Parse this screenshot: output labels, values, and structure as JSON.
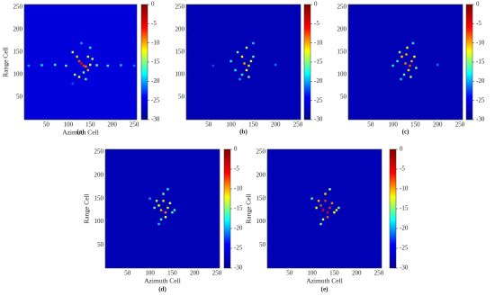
{
  "chart_data": [
    {
      "type": "heatmap",
      "label": "(a)",
      "xlabel": "Azimuth Cell",
      "ylabel": "Range Cell",
      "xlim": [
        0,
        256
      ],
      "ylim": [
        0,
        256
      ],
      "xticks": [
        50,
        100,
        150,
        200,
        250
      ],
      "yticks": [
        50,
        100,
        150,
        200,
        250
      ],
      "zlim": [
        -30,
        0
      ],
      "zticks": [
        0,
        -5,
        -10,
        -15,
        -20,
        -25,
        -30
      ],
      "colorscale": [
        "#00008f",
        "#0000ff",
        "#00ffff",
        "#ffff00",
        "#ff0000",
        "#800000"
      ],
      "background": -26,
      "points": {
        "x": [
          10,
          40,
          70,
          95,
          110,
          120,
          125,
          130,
          135,
          140,
          145,
          150,
          155,
          165,
          190,
          220,
          250,
          115,
          125,
          135,
          140,
          150,
          130,
          110,
          145
        ],
        "y": [
          120,
          121,
          122,
          120,
          150,
          140,
          130,
          125,
          120,
          118,
          110,
          122,
          135,
          121,
          120,
          121,
          120,
          100,
          95,
          105,
          90,
          160,
          170,
          80,
          140
        ],
        "values": [
          -20,
          -18,
          -17,
          -16,
          -13,
          -11,
          -8,
          -6,
          -7,
          -9,
          -10,
          -12,
          -14,
          -15,
          -17,
          -19,
          -21,
          -14,
          -12,
          -15,
          -16,
          -18,
          -20,
          -22,
          -13
        ]
      }
    },
    {
      "type": "heatmap",
      "label": "(b)",
      "xlim": [
        0,
        256
      ],
      "ylim": [
        0,
        256
      ],
      "xticks": [
        50,
        100,
        150,
        200,
        250
      ],
      "yticks": [
        50,
        100,
        150,
        200,
        250
      ],
      "zlim": [
        -30,
        0
      ],
      "zticks": [
        0,
        -5,
        -10,
        -15,
        -20,
        -25,
        -30
      ],
      "colorscale": [
        "#00008f",
        "#0000ff",
        "#00ffff",
        "#ffff00",
        "#ff0000",
        "#800000"
      ],
      "background": -28,
      "points": {
        "x": [
          60,
          100,
          115,
          125,
          130,
          135,
          140,
          145,
          150,
          125,
          135,
          120,
          150,
          200,
          140,
          110
        ],
        "y": [
          120,
          130,
          150,
          140,
          125,
          160,
          120,
          130,
          140,
          100,
          110,
          90,
          170,
          122,
          95,
          110
        ],
        "values": [
          -22,
          -18,
          -15,
          -12,
          -10,
          -14,
          -11,
          -13,
          -16,
          -17,
          -12,
          -20,
          -19,
          -21,
          -15,
          -18
        ]
      }
    },
    {
      "type": "heatmap",
      "label": "(c)",
      "xlim": [
        0,
        256
      ],
      "ylim": [
        0,
        256
      ],
      "xticks": [
        50,
        100,
        150,
        200,
        250
      ],
      "yticks": [
        50,
        100,
        150,
        200,
        250
      ],
      "zlim": [
        -30,
        0
      ],
      "zticks": [
        0,
        -5,
        -10,
        -15,
        -20,
        -25,
        -30
      ],
      "colorscale": [
        "#00008f",
        "#0000ff",
        "#00ffff",
        "#ffff00",
        "#ff0000",
        "#800000"
      ],
      "background": -28,
      "points": {
        "x": [
          100,
          115,
          120,
          128,
          132,
          138,
          142,
          148,
          152,
          125,
          135,
          118,
          145,
          200,
          140,
          110,
          130
        ],
        "y": [
          120,
          150,
          140,
          125,
          160,
          120,
          130,
          140,
          115,
          100,
          110,
          90,
          170,
          122,
          95,
          130,
          145
        ],
        "values": [
          -18,
          -14,
          -11,
          -9,
          -13,
          -8,
          -10,
          -12,
          -15,
          -16,
          -11,
          -19,
          -18,
          -21,
          -14,
          -17,
          -10
        ]
      }
    },
    {
      "type": "heatmap",
      "label": "(d)",
      "xlabel": "Azimuth Cell",
      "ylabel": "Range Cell",
      "xlim": [
        0,
        256
      ],
      "ylim": [
        0,
        256
      ],
      "xticks": [
        50,
        100,
        150,
        200,
        250
      ],
      "yticks": [
        50,
        100,
        150,
        200,
        250
      ],
      "zlim": [
        -30,
        0
      ],
      "zticks": [
        0,
        -5,
        -10,
        -15,
        -20,
        -25,
        -30
      ],
      "colorscale": [
        "#00008f",
        "#0000ff",
        "#00ffff",
        "#ffff00",
        "#ff0000",
        "#800000"
      ],
      "background": -28,
      "points": {
        "x": [
          100,
          115,
          120,
          125,
          130,
          135,
          140,
          145,
          150,
          125,
          135,
          120,
          140,
          110,
          130,
          155
        ],
        "y": [
          150,
          145,
          135,
          125,
          160,
          120,
          130,
          140,
          120,
          105,
          110,
          95,
          170,
          130,
          145,
          125
        ],
        "values": [
          -20,
          -14,
          -12,
          -10,
          -15,
          -9,
          -11,
          -13,
          -16,
          -17,
          -12,
          -19,
          -18,
          -16,
          -11,
          -17
        ]
      }
    },
    {
      "type": "heatmap",
      "label": "(e)",
      "xlabel": "Azimuth Cell",
      "ylabel": "Range Cell",
      "xlim": [
        0,
        256
      ],
      "ylim": [
        0,
        256
      ],
      "xticks": [
        50,
        100,
        150,
        200,
        250
      ],
      "yticks": [
        50,
        100,
        150,
        200,
        250
      ],
      "zlim": [
        -30,
        0
      ],
      "zticks": [
        0,
        -5,
        -10,
        -15,
        -20,
        -25,
        -30
      ],
      "colorscale": [
        "#00008f",
        "#0000ff",
        "#00ffff",
        "#ffff00",
        "#ff0000",
        "#800000"
      ],
      "background": -28,
      "points": {
        "x": [
          100,
          115,
          120,
          125,
          130,
          135,
          140,
          145,
          150,
          125,
          135,
          120,
          140,
          110,
          130,
          155,
          160
        ],
        "y": [
          150,
          145,
          135,
          125,
          160,
          120,
          130,
          140,
          120,
          105,
          110,
          95,
          170,
          130,
          145,
          125,
          130
        ],
        "values": [
          -16,
          -10,
          -8,
          -6,
          -11,
          -5,
          -7,
          -9,
          -12,
          -13,
          -8,
          -15,
          -14,
          -12,
          -7,
          -13,
          -15
        ]
      }
    }
  ]
}
